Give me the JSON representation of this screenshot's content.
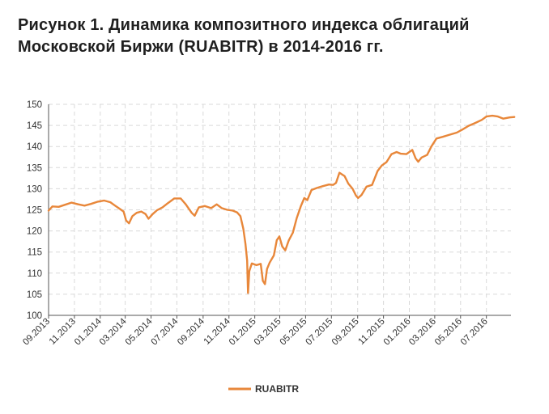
{
  "chart_data": {
    "type": "line",
    "title": "Рисунок 1. Динамика композитного индекса облигаций Московской Биржи (RUABITR) в 2014-2016 гг.",
    "xlabel": "",
    "ylabel": "",
    "ylim": [
      100,
      150
    ],
    "yticks": [
      "100",
      "105",
      "110",
      "115",
      "120",
      "125",
      "130",
      "135",
      "140",
      "145",
      "150"
    ],
    "xlim": [
      "2013-09",
      "2016-08"
    ],
    "xticks": [
      "09.2013",
      "11.2013",
      "01.2014",
      "03.2014",
      "05.2014",
      "07.2014",
      "09.2014",
      "11.2014",
      "01.2015",
      "03.2015",
      "05.2015",
      "07.2015",
      "09.2015",
      "11.2015",
      "01.2016",
      "03.2016",
      "05.2016",
      "07.2016"
    ],
    "grid": true,
    "legend_position": "bottom-center",
    "series": [
      {
        "name": "RUABITR",
        "color": "#e8873a",
        "points": [
          [
            "2013-09-01",
            124.8
          ],
          [
            "2013-09-10",
            125.8
          ],
          [
            "2013-09-25",
            125.7
          ],
          [
            "2013-10-10",
            126.2
          ],
          [
            "2013-10-25",
            126.7
          ],
          [
            "2013-11-10",
            126.3
          ],
          [
            "2013-11-25",
            126.0
          ],
          [
            "2013-12-10",
            126.4
          ],
          [
            "2013-12-25",
            126.9
          ],
          [
            "2014-01-10",
            127.2
          ],
          [
            "2014-01-25",
            126.8
          ],
          [
            "2014-02-05",
            126.0
          ],
          [
            "2014-02-15",
            125.3
          ],
          [
            "2014-02-25",
            124.6
          ],
          [
            "2014-03-03",
            122.5
          ],
          [
            "2014-03-10",
            121.8
          ],
          [
            "2014-03-18",
            123.5
          ],
          [
            "2014-03-28",
            124.3
          ],
          [
            "2014-04-08",
            124.6
          ],
          [
            "2014-04-18",
            124.0
          ],
          [
            "2014-04-25",
            122.9
          ],
          [
            "2014-05-05",
            124.0
          ],
          [
            "2014-05-15",
            124.9
          ],
          [
            "2014-05-28",
            125.6
          ],
          [
            "2014-06-10",
            126.6
          ],
          [
            "2014-06-25",
            127.7
          ],
          [
            "2014-07-10",
            127.7
          ],
          [
            "2014-07-22",
            126.3
          ],
          [
            "2014-08-05",
            124.3
          ],
          [
            "2014-08-12",
            123.6
          ],
          [
            "2014-08-22",
            125.6
          ],
          [
            "2014-09-05",
            125.9
          ],
          [
            "2014-09-20",
            125.4
          ],
          [
            "2014-10-03",
            126.3
          ],
          [
            "2014-10-15",
            125.4
          ],
          [
            "2014-10-28",
            125.0
          ],
          [
            "2014-11-10",
            124.8
          ],
          [
            "2014-11-20",
            124.4
          ],
          [
            "2014-11-28",
            123.5
          ],
          [
            "2014-12-05",
            120.5
          ],
          [
            "2014-12-10",
            117.0
          ],
          [
            "2014-12-14",
            113.0
          ],
          [
            "2014-12-16",
            105.3
          ],
          [
            "2014-12-19",
            110.5
          ],
          [
            "2014-12-25",
            112.3
          ],
          [
            "2015-01-05",
            111.9
          ],
          [
            "2015-01-15",
            112.2
          ],
          [
            "2015-01-20",
            108.2
          ],
          [
            "2015-01-25",
            107.4
          ],
          [
            "2015-01-30",
            111.0
          ],
          [
            "2015-02-05",
            112.5
          ],
          [
            "2015-02-15",
            114.2
          ],
          [
            "2015-02-22",
            117.8
          ],
          [
            "2015-02-28",
            118.7
          ],
          [
            "2015-03-07",
            116.3
          ],
          [
            "2015-03-14",
            115.4
          ],
          [
            "2015-03-22",
            117.7
          ],
          [
            "2015-04-01",
            119.6
          ],
          [
            "2015-04-10",
            123.0
          ],
          [
            "2015-04-20",
            125.9
          ],
          [
            "2015-04-28",
            127.8
          ],
          [
            "2015-05-05",
            127.3
          ],
          [
            "2015-05-15",
            129.7
          ],
          [
            "2015-05-28",
            130.2
          ],
          [
            "2015-06-10",
            130.6
          ],
          [
            "2015-06-25",
            131.0
          ],
          [
            "2015-07-05",
            130.9
          ],
          [
            "2015-07-12",
            131.4
          ],
          [
            "2015-07-20",
            133.8
          ],
          [
            "2015-08-01",
            133.0
          ],
          [
            "2015-08-10",
            131.2
          ],
          [
            "2015-08-20",
            130.0
          ],
          [
            "2015-08-28",
            128.4
          ],
          [
            "2015-09-02",
            127.8
          ],
          [
            "2015-09-10",
            128.5
          ],
          [
            "2015-09-22",
            130.5
          ],
          [
            "2015-10-05",
            130.9
          ],
          [
            "2015-10-18",
            134.2
          ],
          [
            "2015-10-28",
            135.5
          ],
          [
            "2015-11-08",
            136.3
          ],
          [
            "2015-11-20",
            138.2
          ],
          [
            "2015-12-02",
            138.7
          ],
          [
            "2015-12-12",
            138.3
          ],
          [
            "2015-12-25",
            138.2
          ],
          [
            "2016-01-08",
            139.2
          ],
          [
            "2016-01-16",
            137.2
          ],
          [
            "2016-01-22",
            136.4
          ],
          [
            "2016-01-30",
            137.4
          ],
          [
            "2016-02-12",
            138.0
          ],
          [
            "2016-02-22",
            140.0
          ],
          [
            "2016-03-05",
            141.9
          ],
          [
            "2016-03-20",
            142.3
          ],
          [
            "2016-04-05",
            142.8
          ],
          [
            "2016-04-22",
            143.3
          ],
          [
            "2016-05-05",
            144.0
          ],
          [
            "2016-05-20",
            144.9
          ],
          [
            "2016-06-05",
            145.6
          ],
          [
            "2016-06-20",
            146.3
          ],
          [
            "2016-07-01",
            147.1
          ],
          [
            "2016-07-15",
            147.3
          ],
          [
            "2016-07-28",
            147.1
          ],
          [
            "2016-08-10",
            146.6
          ],
          [
            "2016-08-25",
            146.9
          ],
          [
            "2016-09-05",
            147.0
          ]
        ]
      }
    ]
  }
}
